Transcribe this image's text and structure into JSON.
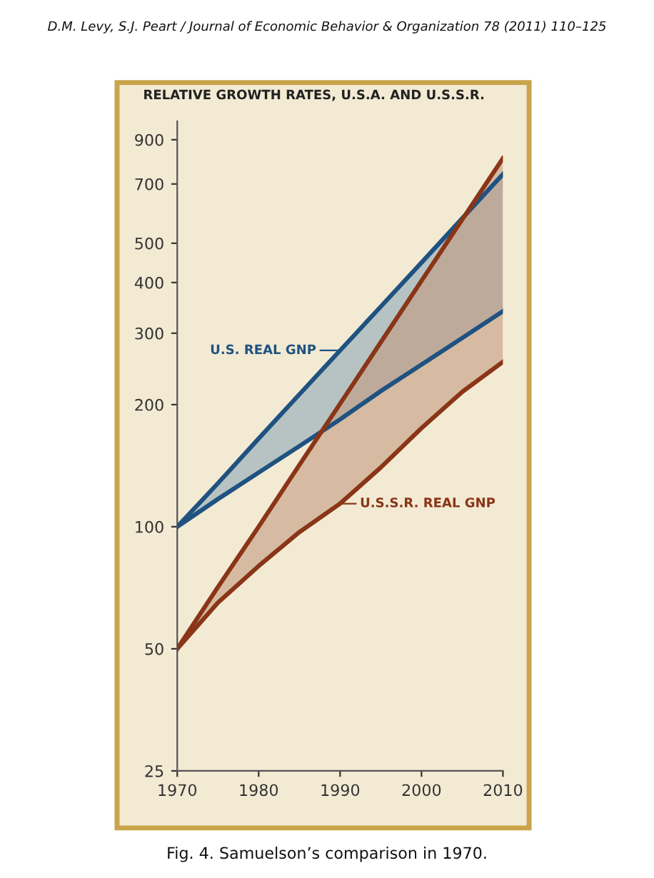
{
  "chart_data": {
    "type": "line",
    "title": "RELATIVE GROWTH RATES, U.S.A. AND U.S.S.R.",
    "annotations": [
      "D.M. Levy, S.J. Peart / Journal of Economic Behavior & Organization 78 (2011) 110–125",
      {
        "text": "U.S. REAL GNP",
        "x": 1990,
        "y": 272
      },
      {
        "text": "U.S.S.R. REAL GNP",
        "x": 1990,
        "y": 114
      },
      "Fig. 4. Samuelson’s comparison in 1970."
    ],
    "x": [
      1970,
      1975,
      1980,
      1985,
      1990,
      1995,
      2000,
      2005,
      2010
    ],
    "series": [
      {
        "color": "#1f5280",
        "values": [
          100,
          128,
          165,
          212,
          272,
          349,
          448,
          576,
          740
        ]
      },
      {
        "color": "#1f5280",
        "values": [
          100,
          117,
          136,
          158,
          184,
          216,
          251,
          292,
          340
        ]
      },
      {
        "color": "#8a3517",
        "values": [
          50,
          71,
          100,
          142,
          201,
          285,
          404,
          572,
          810
        ]
      },
      {
        "color": "#8a3517",
        "values": [
          50,
          65,
          80,
          97,
          114,
          140,
          175,
          215,
          255
        ]
      }
    ],
    "log": "y",
    "ylim": [
      25,
      1000
    ],
    "yticks": [
      25,
      50,
      100,
      200,
      300,
      400,
      500,
      700,
      900
    ],
    "xlim": [
      1970,
      2010
    ],
    "xticks": [
      1970,
      1980,
      1990,
      2000,
      2010
    ],
    "grid": false,
    "legend": false,
    "marker": "none",
    "line_style": "solid"
  }
}
